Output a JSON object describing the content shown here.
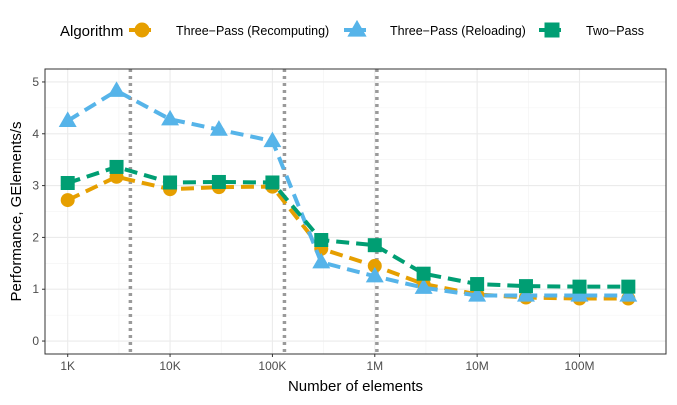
{
  "chart_data": {
    "type": "line",
    "xlabel": "Number of elements",
    "ylabel": "Performance, GElements/s",
    "x_scale": "log10",
    "xlim": [
      600,
      700000000
    ],
    "ylim": [
      -0.25,
      5.25
    ],
    "x_ticks": [
      {
        "value": 1000,
        "label": "1K"
      },
      {
        "value": 10000,
        "label": "10K"
      },
      {
        "value": 100000,
        "label": "100K"
      },
      {
        "value": 1000000,
        "label": "1M"
      },
      {
        "value": 10000000,
        "label": "10M"
      },
      {
        "value": 100000000,
        "label": "100M"
      }
    ],
    "y_ticks": [
      0,
      1,
      2,
      3,
      4,
      5
    ],
    "grid": true,
    "vertical_reference_lines": [
      4096,
      131072,
      1048576
    ],
    "legend": {
      "title": "Algorithm",
      "position": "top"
    },
    "x": [
      1000,
      3000,
      10000,
      30000,
      100000,
      300000,
      1000000,
      3000000,
      10000000,
      30000000,
      100000000,
      300000000
    ],
    "series": [
      {
        "name": "Three−Pass (Recomputing)",
        "color": "#E69F00",
        "marker": "circle",
        "values": [
          2.72,
          3.17,
          2.93,
          2.97,
          2.98,
          1.78,
          1.45,
          1.1,
          0.9,
          0.84,
          0.82,
          0.82
        ]
      },
      {
        "name": "Three−Pass (Reloading)",
        "color": "#56B4E9",
        "marker": "triangle",
        "values": [
          4.25,
          4.83,
          4.28,
          4.08,
          3.86,
          1.52,
          1.25,
          1.03,
          0.88,
          0.88,
          0.88,
          0.88
        ]
      },
      {
        "name": "Two−Pass",
        "color": "#009E73",
        "marker": "square",
        "values": [
          3.05,
          3.36,
          3.06,
          3.07,
          3.06,
          1.95,
          1.85,
          1.3,
          1.1,
          1.06,
          1.05,
          1.05
        ]
      }
    ]
  }
}
